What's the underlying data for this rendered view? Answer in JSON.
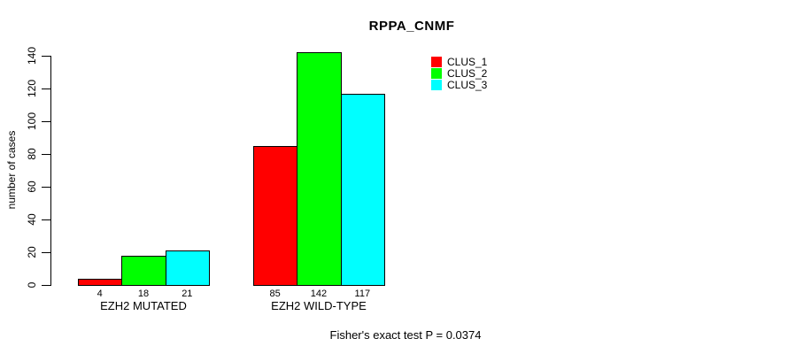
{
  "title": "RPPA_CNMF",
  "footer_annotation": "Fisher's exact test P = 0.0374",
  "chart_data": {
    "type": "bar",
    "title": "RPPA_CNMF",
    "xlabel": "",
    "ylabel": "number of cases",
    "categories": [
      "EZH2 MUTATED",
      "EZH2 WILD-TYPE"
    ],
    "series": [
      {
        "name": "CLUS_1",
        "color": "#ff0000",
        "values": [
          4,
          85
        ]
      },
      {
        "name": "CLUS_2",
        "color": "#00ff00",
        "values": [
          18,
          142
        ]
      },
      {
        "name": "CLUS_3",
        "color": "#00ffff",
        "values": [
          21,
          117
        ]
      }
    ],
    "bar_value_labels": [
      [
        "4",
        "18",
        "21"
      ],
      [
        "85",
        "142",
        "117"
      ]
    ],
    "yticks": [
      0,
      20,
      40,
      60,
      80,
      100,
      120,
      140
    ],
    "ylim": [
      0,
      140
    ],
    "grid": false,
    "legend_position": "top-right",
    "annotation": "Fisher's exact test P = 0.0374",
    "bar_border_color": "#000000"
  }
}
